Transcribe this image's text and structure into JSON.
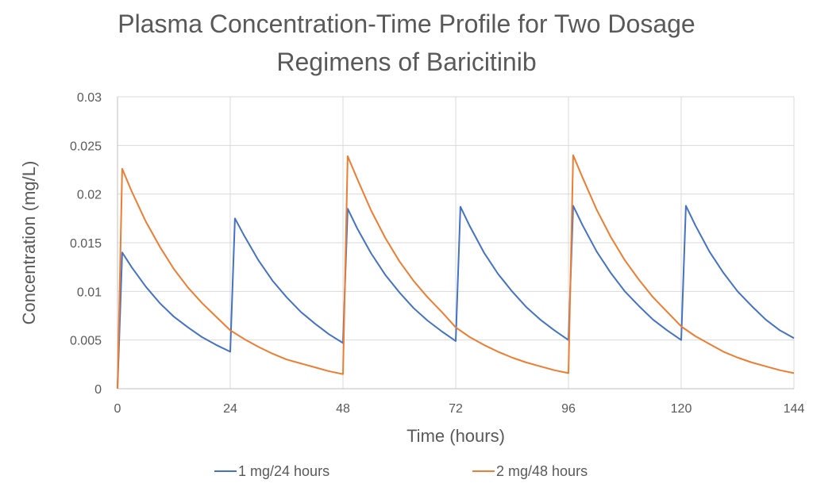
{
  "chart_data": {
    "type": "line",
    "title_line1": "Plasma Concentration-Time Profile for Two Dosage",
    "title_line2": "Regimens of Baricitinib",
    "xlabel": "Time (hours)",
    "ylabel": "Concentration (mg/L)",
    "xlim": [
      0,
      144
    ],
    "ylim": [
      0,
      0.03
    ],
    "x_ticks": [
      0,
      24,
      48,
      72,
      96,
      120,
      144
    ],
    "x_tick_labels": [
      "0",
      "24",
      "48",
      "72",
      "96",
      "120",
      "144"
    ],
    "y_ticks": [
      0,
      0.005,
      0.01,
      0.015,
      0.02,
      0.025,
      0.03
    ],
    "y_tick_labels": [
      "0",
      "0.005",
      "0.01",
      "0.015",
      "0.02",
      "0.025",
      "0.03"
    ],
    "grid": true,
    "legend_position": "bottom",
    "series": [
      {
        "name": "1 mg/24 hours",
        "color": "#4472C4",
        "points": [
          [
            0,
            0
          ],
          [
            1,
            0.014
          ],
          [
            3,
            0.0125
          ],
          [
            6,
            0.0105
          ],
          [
            9,
            0.0088
          ],
          [
            12,
            0.0074
          ],
          [
            15,
            0.0063
          ],
          [
            18,
            0.0053
          ],
          [
            21,
            0.0045
          ],
          [
            24,
            0.0038
          ],
          [
            25,
            0.0175
          ],
          [
            27,
            0.0157
          ],
          [
            30,
            0.0132
          ],
          [
            33,
            0.0111
          ],
          [
            36,
            0.0094
          ],
          [
            39,
            0.0079
          ],
          [
            42,
            0.0067
          ],
          [
            45,
            0.0056
          ],
          [
            48,
            0.0047
          ],
          [
            49,
            0.0185
          ],
          [
            51,
            0.0165
          ],
          [
            54,
            0.0139
          ],
          [
            57,
            0.0117
          ],
          [
            60,
            0.0099
          ],
          [
            63,
            0.0083
          ],
          [
            66,
            0.007
          ],
          [
            69,
            0.0059
          ],
          [
            72,
            0.0049
          ],
          [
            73,
            0.0187
          ],
          [
            75,
            0.0167
          ],
          [
            78,
            0.014
          ],
          [
            81,
            0.0118
          ],
          [
            84,
            0.01
          ],
          [
            87,
            0.0084
          ],
          [
            90,
            0.0071
          ],
          [
            93,
            0.006
          ],
          [
            96,
            0.005
          ],
          [
            97,
            0.0188
          ],
          [
            99,
            0.0168
          ],
          [
            102,
            0.0141
          ],
          [
            105,
            0.0119
          ],
          [
            108,
            0.01
          ],
          [
            111,
            0.0085
          ],
          [
            114,
            0.0071
          ],
          [
            117,
            0.006
          ],
          [
            120,
            0.005
          ],
          [
            121,
            0.0188
          ],
          [
            123,
            0.0168
          ],
          [
            126,
            0.0141
          ],
          [
            129,
            0.0119
          ],
          [
            132,
            0.01
          ],
          [
            135,
            0.0085
          ],
          [
            138,
            0.0071
          ],
          [
            141,
            0.006
          ],
          [
            144,
            0.0052
          ]
        ]
      },
      {
        "name": "2 mg/48 hours",
        "color": "#ED7D31",
        "points": [
          [
            0,
            0
          ],
          [
            1,
            0.0226
          ],
          [
            3,
            0.0203
          ],
          [
            6,
            0.0172
          ],
          [
            9,
            0.0146
          ],
          [
            12,
            0.0123
          ],
          [
            15,
            0.0104
          ],
          [
            18,
            0.0088
          ],
          [
            21,
            0.0074
          ],
          [
            24,
            0.006
          ],
          [
            27,
            0.0051
          ],
          [
            30,
            0.0043
          ],
          [
            33,
            0.0036
          ],
          [
            36,
            0.003
          ],
          [
            39,
            0.0026
          ],
          [
            42,
            0.0022
          ],
          [
            45,
            0.0018
          ],
          [
            48,
            0.0015
          ],
          [
            49,
            0.0239
          ],
          [
            51,
            0.0216
          ],
          [
            54,
            0.0183
          ],
          [
            57,
            0.0155
          ],
          [
            60,
            0.0131
          ],
          [
            63,
            0.0111
          ],
          [
            66,
            0.0094
          ],
          [
            69,
            0.0079
          ],
          [
            72,
            0.0063
          ],
          [
            75,
            0.0053
          ],
          [
            78,
            0.0045
          ],
          [
            81,
            0.0038
          ],
          [
            84,
            0.0032
          ],
          [
            87,
            0.0027
          ],
          [
            90,
            0.0023
          ],
          [
            93,
            0.0019
          ],
          [
            96,
            0.0016
          ],
          [
            97,
            0.024
          ],
          [
            99,
            0.0217
          ],
          [
            102,
            0.0184
          ],
          [
            105,
            0.0156
          ],
          [
            108,
            0.0132
          ],
          [
            111,
            0.0112
          ],
          [
            114,
            0.0094
          ],
          [
            117,
            0.0079
          ],
          [
            120,
            0.0064
          ],
          [
            123,
            0.0054
          ],
          [
            126,
            0.0046
          ],
          [
            129,
            0.0038
          ],
          [
            132,
            0.0032
          ],
          [
            135,
            0.0027
          ],
          [
            138,
            0.0023
          ],
          [
            141,
            0.0019
          ],
          [
            144,
            0.0016
          ]
        ]
      }
    ]
  }
}
